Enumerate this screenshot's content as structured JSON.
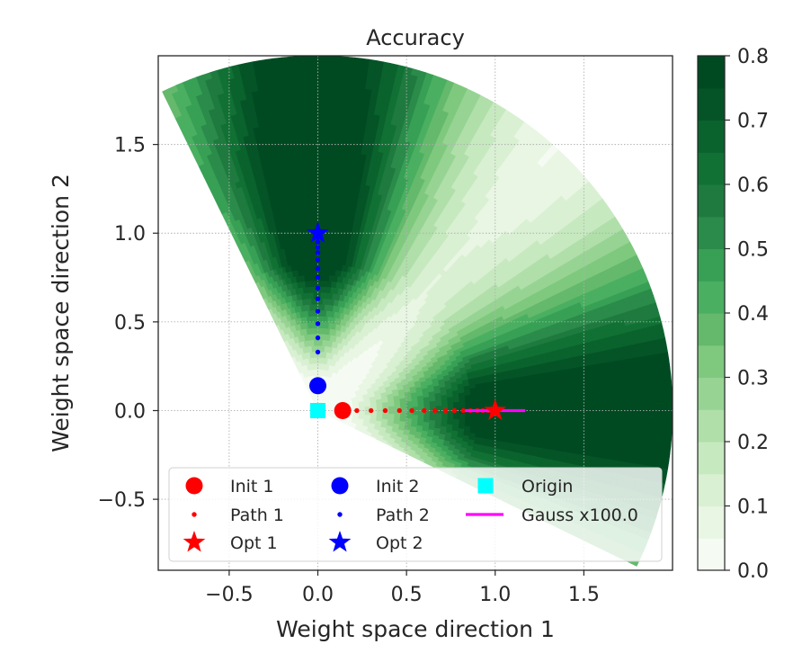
{
  "chart_data": {
    "type": "contour",
    "title": "Accuracy",
    "xlabel": "Weight space direction 1",
    "ylabel": "Weight space direction 2",
    "xlim": [
      -0.9,
      2.0
    ],
    "ylim": [
      -0.9,
      2.0
    ],
    "xticks": [
      -0.5,
      0.0,
      0.5,
      1.0,
      1.5
    ],
    "yticks": [
      -0.5,
      0.0,
      0.5,
      1.0,
      1.5
    ],
    "xtick_labels": [
      "−0.5",
      "0.0",
      "0.5",
      "1.0",
      "1.5"
    ],
    "ytick_labels": [
      "−0.5",
      "0.0",
      "0.5",
      "1.0",
      "1.5"
    ],
    "grid": true,
    "fan": {
      "radius": 2.0,
      "angle_min_deg": -26,
      "angle_max_deg": 116
    },
    "levels": [
      0.0,
      0.05,
      0.1,
      0.15,
      0.2,
      0.25,
      0.3,
      0.35,
      0.4,
      0.45,
      0.5,
      0.55,
      0.6,
      0.65,
      0.7,
      0.75,
      0.8
    ],
    "colorbar": {
      "ticks": [
        0.0,
        0.1,
        0.2,
        0.3,
        0.4,
        0.5,
        0.6,
        0.7,
        0.8
      ],
      "tick_labels": [
        "0.0",
        "0.1",
        "0.2",
        "0.3",
        "0.4",
        "0.5",
        "0.6",
        "0.7",
        "0.8"
      ],
      "colors": [
        "#f5fbf3",
        "#e8f6e3",
        "#d9f0d3",
        "#c7e9c0",
        "#b0dfaa",
        "#97d494",
        "#7fc97f",
        "#64b96c",
        "#4aaf61",
        "#37a055",
        "#2b8b4a",
        "#1f7a3f",
        "#117134",
        "#0a632d",
        "#055427",
        "#004a22"
      ]
    },
    "series": [
      {
        "name": "Init 1",
        "marker": "circle",
        "color": "#ff0000",
        "points": [
          [
            0.14,
            0.0
          ]
        ]
      },
      {
        "name": "Path 1",
        "marker": "dot",
        "color": "#ff0000",
        "points": [
          [
            0.22,
            0.0
          ],
          [
            0.3,
            0.0
          ],
          [
            0.38,
            0.0
          ],
          [
            0.46,
            0.0
          ],
          [
            0.53,
            0.0
          ],
          [
            0.6,
            0.0
          ],
          [
            0.66,
            0.0
          ],
          [
            0.72,
            0.0
          ],
          [
            0.77,
            0.0
          ],
          [
            0.82,
            0.0
          ],
          [
            0.86,
            0.0
          ],
          [
            0.9,
            0.0
          ],
          [
            0.93,
            0.0
          ],
          [
            0.96,
            0.0
          ],
          [
            0.98,
            0.0
          ],
          [
            0.995,
            0.0
          ]
        ]
      },
      {
        "name": "Opt 1",
        "marker": "star",
        "color": "#ff0000",
        "points": [
          [
            1.0,
            0.0
          ]
        ]
      },
      {
        "name": "Init 2",
        "marker": "circle",
        "color": "#0000ff",
        "points": [
          [
            0.0,
            0.14
          ]
        ]
      },
      {
        "name": "Path 2",
        "marker": "dot",
        "color": "#0000ff",
        "points": [
          [
            0.0,
            0.33
          ],
          [
            0.0,
            0.41
          ],
          [
            0.0,
            0.49
          ],
          [
            0.0,
            0.56
          ],
          [
            0.0,
            0.63
          ],
          [
            0.0,
            0.69
          ],
          [
            0.0,
            0.75
          ],
          [
            0.0,
            0.8
          ],
          [
            0.0,
            0.85
          ],
          [
            0.0,
            0.89
          ],
          [
            0.0,
            0.92
          ],
          [
            0.0,
            0.95
          ],
          [
            0.0,
            0.975
          ],
          [
            0.0,
            0.99
          ]
        ]
      },
      {
        "name": "Opt 2",
        "marker": "star",
        "color": "#0000ff",
        "points": [
          [
            0.0,
            1.0
          ]
        ]
      },
      {
        "name": "Origin",
        "marker": "square",
        "color": "#00ffff",
        "points": [
          [
            0.0,
            0.0
          ]
        ]
      },
      {
        "name": "Gauss x100.0",
        "marker": "line",
        "color": "#ff00ff",
        "points": [
          [
            0.83,
            0.0
          ],
          [
            1.17,
            0.0
          ]
        ]
      }
    ],
    "legend": {
      "placement": "lower-center",
      "entries": [
        "Init 1",
        "Init 2",
        "Origin",
        "Path 1",
        "Path 2",
        "Gauss x100.0",
        "Opt 1",
        "Opt 2"
      ]
    }
  }
}
